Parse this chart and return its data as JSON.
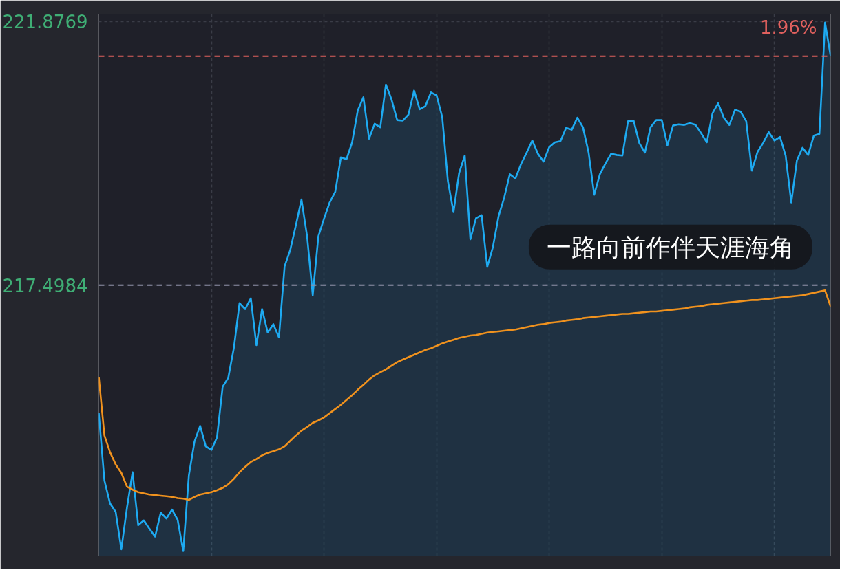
{
  "chart_data": {
    "type": "area",
    "tick_labels": "y",
    "categories": [
      null,
      null,
      null,
      null,
      null,
      null,
      null,
      null,
      null,
      null,
      null,
      null,
      null,
      null,
      null,
      null,
      null,
      null,
      null,
      null,
      null,
      null,
      null,
      null,
      null,
      null,
      null,
      null,
      null,
      null,
      null,
      null,
      null,
      null,
      null,
      null,
      null,
      null,
      null,
      null,
      null,
      null,
      null,
      null,
      null,
      null,
      null,
      null,
      null,
      null,
      null,
      null,
      null,
      null,
      null,
      null,
      null,
      null,
      null,
      null,
      null,
      null,
      null,
      null,
      null,
      null,
      null,
      null,
      null,
      null,
      null,
      null,
      null,
      null,
      null,
      null,
      null,
      null,
      null,
      null,
      null,
      null,
      null,
      null,
      null,
      null,
      null,
      null,
      null,
      null,
      null,
      null,
      null,
      null,
      null,
      null,
      null,
      null,
      null,
      null,
      null,
      null,
      null,
      null,
      null,
      null,
      null,
      null,
      null,
      null,
      null,
      null,
      null,
      null,
      null,
      null,
      null,
      null,
      null,
      null,
      null,
      null,
      null,
      null,
      null,
      null,
      null,
      null,
      null,
      null,
      null
    ],
    "ylim": [
      213,
      222
    ],
    "yticks": [
      {
        "value": 221.8769,
        "label": "221.8769"
      },
      {
        "value": 217.4984,
        "label": "217.4984"
      }
    ],
    "grid": true,
    "ref_lines": [
      {
        "axis": "y",
        "value": 221.3,
        "color": "#e0605e",
        "line_style": "dashed"
      },
      {
        "axis": "y",
        "value": 217.4984,
        "color": "#8e90a6",
        "line_style": "dashed"
      }
    ],
    "series": [
      {
        "color": "#1eaaf1",
        "values": [
          215.37,
          214.25,
          213.87,
          213.73,
          213.11,
          213.8,
          214.39,
          213.51,
          213.59,
          213.45,
          213.32,
          213.72,
          213.62,
          213.77,
          213.6,
          213.08,
          214.34,
          214.9,
          215.16,
          214.82,
          214.76,
          214.97,
          215.81,
          215.96,
          216.46,
          217.2,
          217.1,
          217.28,
          216.5,
          217.1,
          216.71,
          216.85,
          216.63,
          217.81,
          218.08,
          218.49,
          218.92,
          218.31,
          217.33,
          218.31,
          218.6,
          218.87,
          219.05,
          219.62,
          219.59,
          219.87,
          220.4,
          220.62,
          219.93,
          220.18,
          220.12,
          220.83,
          220.58,
          220.24,
          220.23,
          220.33,
          220.73,
          220.42,
          220.47,
          220.7,
          220.65,
          220.29,
          219.23,
          218.71,
          219.36,
          219.65,
          218.26,
          218.61,
          218.66,
          217.8,
          218.13,
          218.64,
          218.95,
          219.34,
          219.27,
          219.51,
          219.7,
          219.9,
          219.68,
          219.55,
          219.79,
          219.87,
          219.89,
          220.11,
          220.08,
          220.28,
          220.12,
          219.7,
          219.0,
          219.34,
          219.52,
          219.68,
          219.66,
          219.65,
          220.22,
          220.23,
          219.86,
          219.7,
          220.12,
          220.24,
          220.24,
          219.82,
          220.15,
          220.17,
          220.16,
          220.19,
          220.16,
          220.02,
          219.87,
          220.35,
          220.52,
          220.28,
          220.16,
          220.41,
          220.38,
          220.22,
          219.4,
          219.71,
          219.86,
          220.04,
          219.9,
          219.96,
          219.65,
          218.87,
          219.57,
          219.78,
          219.66,
          219.98,
          220.01,
          221.86,
          221.3
        ]
      },
      {
        "type": "line",
        "color": "#f0921e",
        "values": [
          215.97,
          215.0,
          214.72,
          214.52,
          214.38,
          214.15,
          214.1,
          214.06,
          214.04,
          214.02,
          214.01,
          214.0,
          213.99,
          213.98,
          213.96,
          213.95,
          213.93,
          213.98,
          214.02,
          214.04,
          214.06,
          214.09,
          214.13,
          214.19,
          214.28,
          214.39,
          214.48,
          214.56,
          214.61,
          214.67,
          214.71,
          214.74,
          214.77,
          214.82,
          214.91,
          215.0,
          215.08,
          215.14,
          215.21,
          215.25,
          215.3,
          215.37,
          215.44,
          215.51,
          215.59,
          215.67,
          215.76,
          215.84,
          215.93,
          216.0,
          216.05,
          216.1,
          216.16,
          216.22,
          216.26,
          216.3,
          216.34,
          216.38,
          216.42,
          216.45,
          216.49,
          216.53,
          216.56,
          216.59,
          216.62,
          216.64,
          216.66,
          216.67,
          216.69,
          216.71,
          216.72,
          216.73,
          216.74,
          216.75,
          216.76,
          216.78,
          216.8,
          216.82,
          216.84,
          216.85,
          216.87,
          216.88,
          216.89,
          216.91,
          216.92,
          216.93,
          216.95,
          216.96,
          216.97,
          216.98,
          216.99,
          217.0,
          217.01,
          217.02,
          217.02,
          217.03,
          217.04,
          217.05,
          217.06,
          217.06,
          217.07,
          217.08,
          217.09,
          217.1,
          217.11,
          217.13,
          217.14,
          217.15,
          217.17,
          217.18,
          217.19,
          217.2,
          217.21,
          217.22,
          217.23,
          217.24,
          217.25,
          217.25,
          217.26,
          217.27,
          217.28,
          217.29,
          217.3,
          217.31,
          217.32,
          217.33,
          217.35,
          217.37,
          217.39,
          217.41,
          217.14
        ]
      }
    ],
    "annotations": [
      "1.96%",
      "一路向前作伴天涯海角"
    ]
  }
}
